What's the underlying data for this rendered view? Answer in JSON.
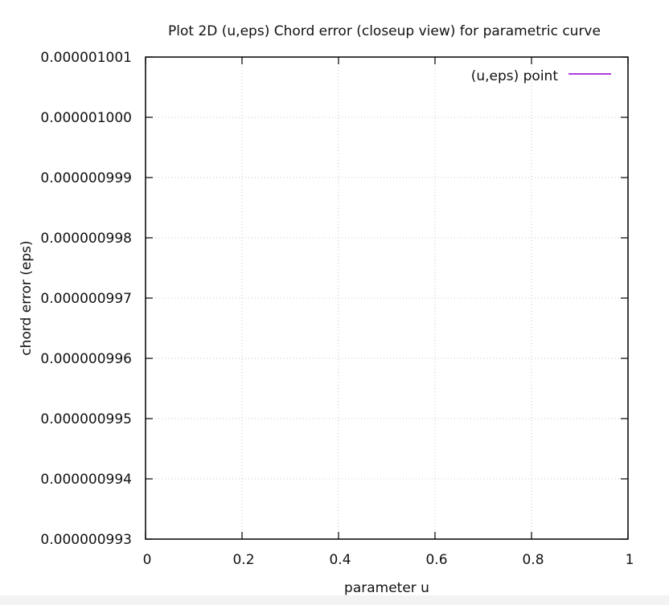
{
  "chart_data": {
    "type": "line",
    "title": "Plot 2D (u,eps) Chord error (closeup view) for parametric curve",
    "xlabel": "parameter u",
    "ylabel": "chord error (eps)",
    "xlim": [
      0,
      1
    ],
    "ylim": [
      9.93e-07,
      1.001e-06
    ],
    "x_ticks": [
      "0",
      "0.2",
      "0.4",
      "0.6",
      "0.8",
      "1"
    ],
    "y_ticks": [
      "0.000000993",
      "0.000000994",
      "0.000000995",
      "0.000000996",
      "0.000000997",
      "0.000000998",
      "0.000000999",
      "0.000001000",
      "0.000001001"
    ],
    "grid": true,
    "legend_position": "top-right",
    "series": [
      {
        "name": "(u,eps) point",
        "color": "#9400d3",
        "x": [],
        "y": []
      }
    ]
  }
}
